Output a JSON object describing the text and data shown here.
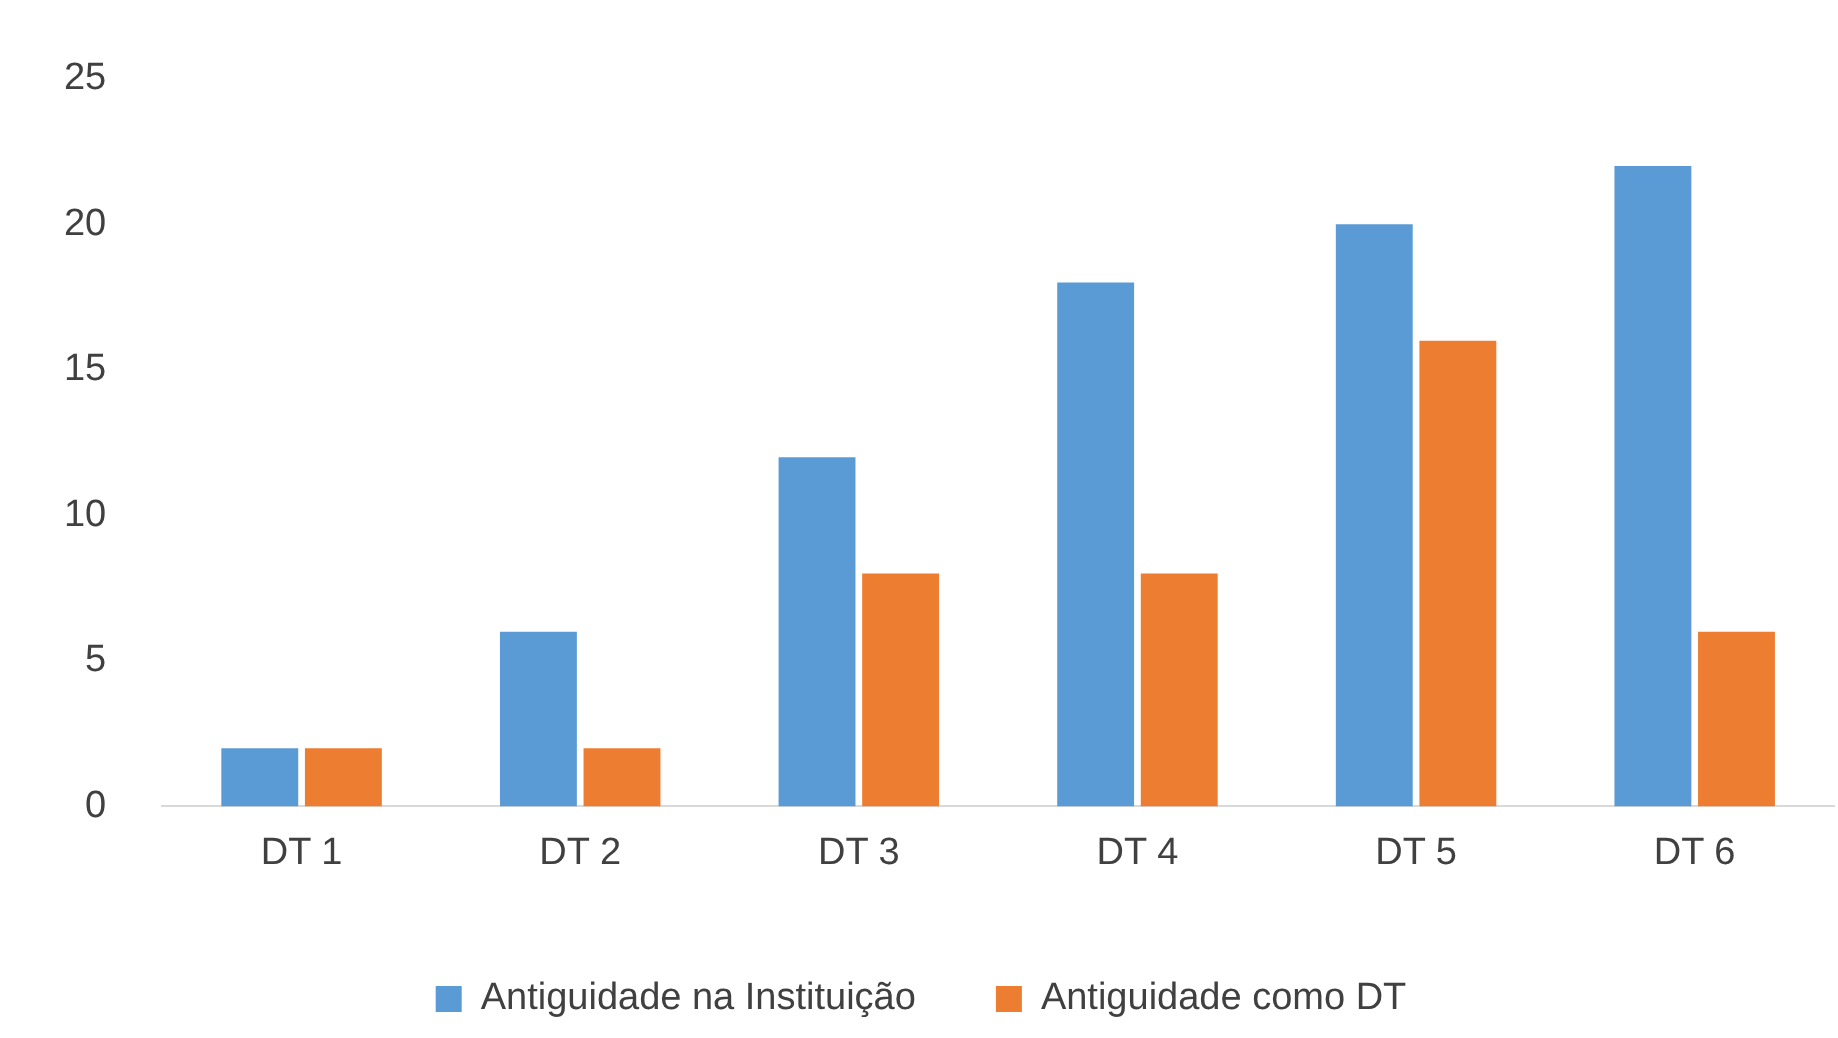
{
  "chart_data": {
    "type": "bar",
    "categories": [
      "DT 1",
      "DT 2",
      "DT 3",
      "DT 4",
      "DT 5",
      "DT 6"
    ],
    "series": [
      {
        "name": "Antiguidade na Instituição",
        "color": "#5b9bd5",
        "values": [
          2,
          6,
          12,
          18,
          20,
          22
        ]
      },
      {
        "name": "Antiguidade como DT",
        "color": "#ed7d31",
        "values": [
          2,
          2,
          8,
          8,
          16,
          6
        ]
      }
    ],
    "ylim": [
      0,
      25
    ],
    "yticks": [
      0,
      5,
      10,
      15,
      20,
      25
    ],
    "grid": false,
    "legend": "bottom"
  }
}
